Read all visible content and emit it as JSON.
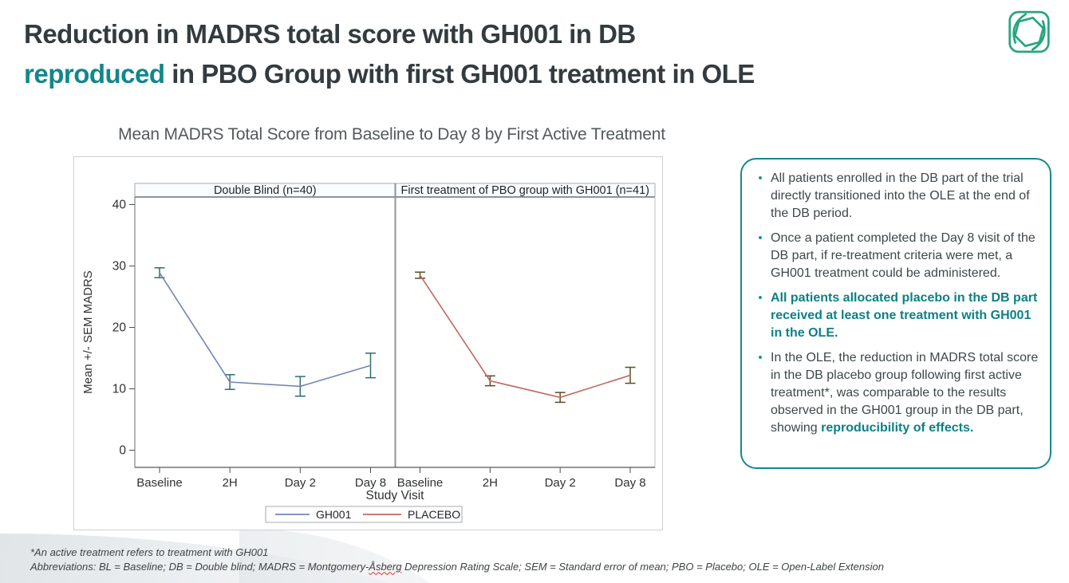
{
  "slide": {
    "title": {
      "line1": "Reduction in MADRS total score with GH001 in DB",
      "line2_highlight": "reproduced",
      "line2_rest": " in PBO Group with first GH001 treatment in OLE"
    },
    "colors": {
      "title_dark": "#333b3e",
      "accent_teal": "#12878b",
      "logo_green": "#27a57d",
      "info_box_border": "#15898c"
    }
  },
  "chart_data": {
    "type": "line",
    "title": "Mean MADRS Total Score from Baseline to Day 8 by First Active Treatment",
    "xlabel": "Study Visit",
    "ylabel": "Mean +/- SEM MADRS",
    "ylim": [
      0,
      41
    ],
    "yticks": [
      0,
      10,
      20,
      30,
      40
    ],
    "grid": false,
    "legend_position": "bottom",
    "categories": [
      "Baseline",
      "2H",
      "Day 2",
      "Day 8"
    ],
    "panels": [
      {
        "header": "Double Blind (n=40)",
        "series": "GH001",
        "color": "#7384b5",
        "error_color": "#2c6e6e",
        "means": [
          28.9,
          11.1,
          10.4,
          13.8
        ],
        "sems": [
          0.8,
          1.2,
          1.6,
          2.0
        ]
      },
      {
        "header": "First treatment of PBO group with GH001 (n=41)",
        "series": "PLACEBO",
        "color": "#bf6a5e",
        "error_color": "#5e4a22",
        "means": [
          28.5,
          11.3,
          8.6,
          12.2
        ],
        "sems": [
          0.5,
          0.8,
          0.8,
          1.3
        ]
      }
    ],
    "legend": [
      {
        "label": "GH001",
        "color": "#7384b5"
      },
      {
        "label": "PLACEBO",
        "color": "#bf6a5e"
      }
    ]
  },
  "info_box": {
    "bullets": [
      {
        "segments": [
          {
            "style": "normal",
            "text": "All patients enrolled in the DB part of the trial directly transitioned into the OLE at the end of the DB period."
          }
        ]
      },
      {
        "segments": [
          {
            "style": "normal",
            "text": "Once a patient completed the Day 8 visit of the DB part, if re-treatment criteria were met, a GH001 treatment could be administered."
          }
        ]
      },
      {
        "segments": [
          {
            "style": "bold-teal",
            "text": "All patients allocated placebo in the DB part received at least one treatment with GH001 in the OLE."
          }
        ]
      },
      {
        "segments": [
          {
            "style": "normal",
            "text": "In the OLE, the reduction in MADRS total score in the DB placebo group following first active treatment*, was comparable to the results observed in the GH001 group in the DB part, showing "
          },
          {
            "style": "bold-teal",
            "text": "reproducibility of effects."
          }
        ]
      }
    ]
  },
  "footnotes": {
    "line1": "*An active treatment refers to treatment with GH001",
    "line2_pre": "Abbreviations: BL = Baseline; DB = Double blind; MADRS = Montgomery-",
    "line2_wavy": "Åsberg",
    "line2_post": " Depression Rating Scale; SEM = Standard error of mean; PBO = Placebo; OLE = Open-Label Extension"
  }
}
